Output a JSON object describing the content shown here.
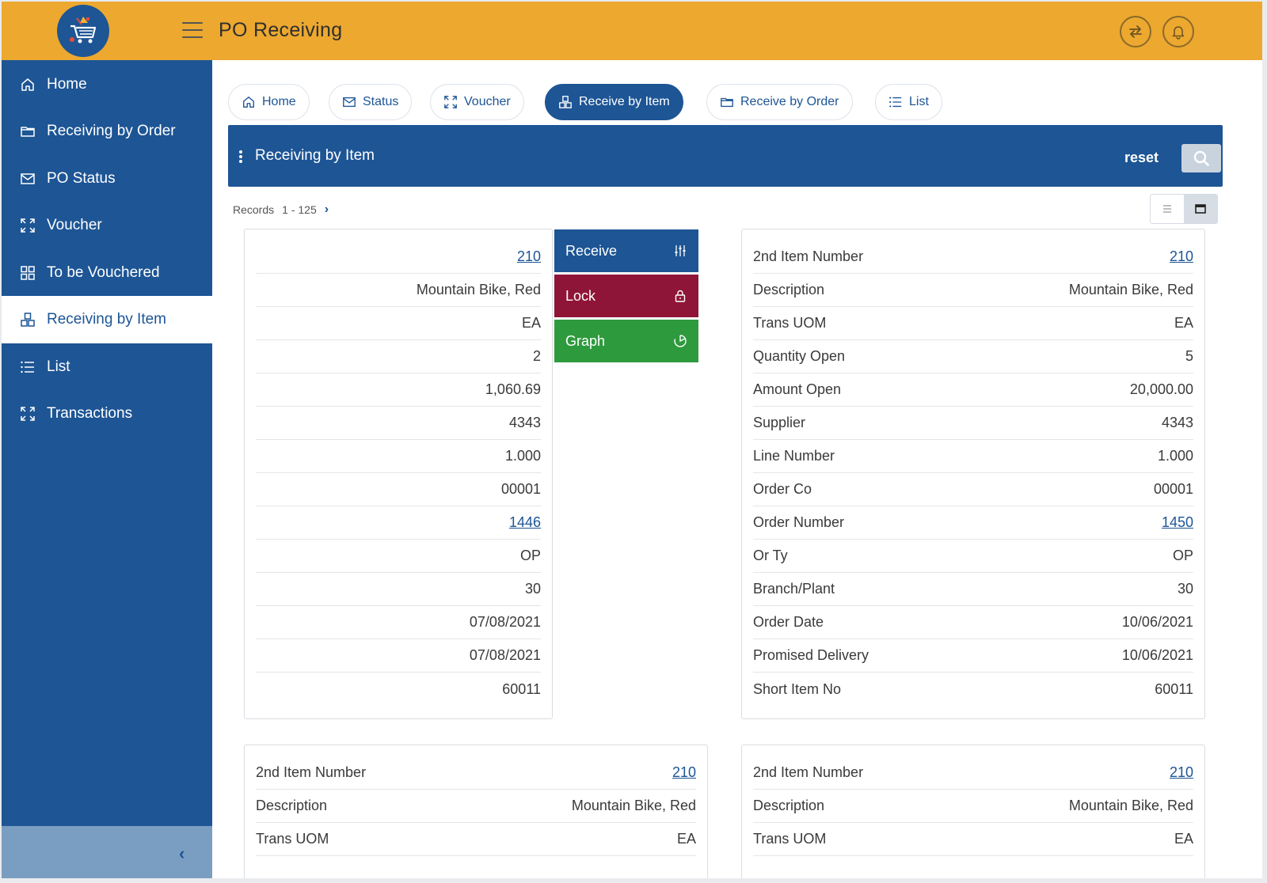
{
  "header": {
    "title": "PO Receiving",
    "logo_icon": "shopping-cart-icon"
  },
  "sidebar": {
    "items": [
      {
        "label": "Home",
        "icon": "home-icon"
      },
      {
        "label": "Receiving by Order",
        "icon": "folder-icon"
      },
      {
        "label": "PO Status",
        "icon": "envelope-icon"
      },
      {
        "label": "Voucher",
        "icon": "expand-icon"
      },
      {
        "label": "To be Vouchered",
        "icon": "grid-icon"
      },
      {
        "label": "Receiving by Item",
        "icon": "boxes-icon",
        "active": true
      },
      {
        "label": "List",
        "icon": "list-icon"
      },
      {
        "label": "Transactions",
        "icon": "expand-icon"
      }
    ]
  },
  "tabs": [
    {
      "label": "Home",
      "icon": "home-icon"
    },
    {
      "label": "Status",
      "icon": "envelope-icon"
    },
    {
      "label": "Voucher",
      "icon": "expand-icon"
    },
    {
      "label": "Receive by Item",
      "icon": "boxes-icon",
      "active": true
    },
    {
      "label": "Receive by Order",
      "icon": "folder-icon"
    },
    {
      "label": "List",
      "icon": "list-icon"
    }
  ],
  "panel": {
    "title": "Receiving by Item",
    "reset_label": "reset"
  },
  "records": {
    "label": "Records",
    "range": "1 - 125"
  },
  "card1": {
    "values": [
      "210",
      "Mountain Bike, Red",
      "EA",
      "2",
      "1,060.69",
      "4343",
      "1.000",
      "00001",
      "1446",
      "OP",
      "30",
      "07/08/2021",
      "07/08/2021",
      "60011"
    ]
  },
  "actions": [
    {
      "label": "Receive",
      "color": "#1d5595",
      "icon": "sliders-icon"
    },
    {
      "label": "Lock",
      "color": "#8e1538",
      "icon": "lock-icon"
    },
    {
      "label": "Graph",
      "color": "#2e9a3e",
      "icon": "pie-chart-icon"
    }
  ],
  "card2": {
    "rows": [
      {
        "k": "2nd Item Number",
        "v": "210"
      },
      {
        "k": "Description",
        "v": "Mountain Bike, Red"
      },
      {
        "k": "Trans UOM",
        "v": "EA"
      },
      {
        "k": "Quantity Open",
        "v": "5"
      },
      {
        "k": "Amount Open",
        "v": "20,000.00"
      },
      {
        "k": "Supplier",
        "v": "4343"
      },
      {
        "k": "Line Number",
        "v": "1.000"
      },
      {
        "k": "Order Co",
        "v": "00001"
      },
      {
        "k": "Order Number",
        "v": "1450"
      },
      {
        "k": "Or Ty",
        "v": "OP"
      },
      {
        "k": "Branch/Plant",
        "v": "30"
      },
      {
        "k": "Order Date",
        "v": "10/06/2021"
      },
      {
        "k": "Promised Delivery",
        "v": "10/06/2021"
      },
      {
        "k": "Short Item No",
        "v": "60011"
      }
    ]
  },
  "card3": {
    "rows": [
      {
        "k": "2nd Item Number",
        "v": "210"
      },
      {
        "k": "Description",
        "v": "Mountain Bike, Red"
      },
      {
        "k": "Trans UOM",
        "v": "EA"
      }
    ]
  },
  "card4": {
    "rows": [
      {
        "k": "2nd Item Number",
        "v": "210"
      },
      {
        "k": "Description",
        "v": "Mountain Bike, Red"
      },
      {
        "k": "Trans UOM",
        "v": "EA"
      }
    ]
  }
}
